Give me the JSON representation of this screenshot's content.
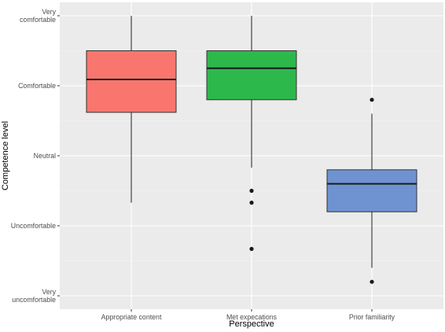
{
  "chart_data": {
    "type": "box",
    "xlabel": "Perspective",
    "ylabel": "Competence level",
    "y_scale": {
      "min": 1,
      "max": 5,
      "ticks": [
        {
          "value": 5,
          "label_lines": [
            "Very",
            "comfortable"
          ]
        },
        {
          "value": 4,
          "label_lines": [
            "Comfortable"
          ]
        },
        {
          "value": 3,
          "label_lines": [
            "Neutral"
          ]
        },
        {
          "value": 2,
          "label_lines": [
            "Uncomfortable"
          ]
        },
        {
          "value": 1,
          "label_lines": [
            "Very",
            "uncomfortable"
          ]
        }
      ]
    },
    "categories": [
      "Appropriate content",
      "Met expecations",
      "Prior familiarity"
    ],
    "boxes": [
      {
        "category": "Appropriate content",
        "whisker_low": 2.33,
        "q1": 3.62,
        "median": 4.09,
        "q3": 4.5,
        "whisker_high": 5.0,
        "outliers": [],
        "color": "#F8766D"
      },
      {
        "category": "Met expecations",
        "whisker_low": 2.83,
        "q1": 3.8,
        "median": 4.25,
        "q3": 4.5,
        "whisker_high": 5.0,
        "outliers": [
          2.5,
          2.33,
          1.67
        ],
        "color": "#2DB84C"
      },
      {
        "category": "Prior familiarity",
        "whisker_low": 1.4,
        "q1": 2.2,
        "median": 2.6,
        "q3": 2.8,
        "whisker_high": 3.6,
        "outliers": [
          3.8,
          1.2
        ],
        "color": "#6E93D0"
      }
    ],
    "grid": true,
    "legend": "none"
  }
}
